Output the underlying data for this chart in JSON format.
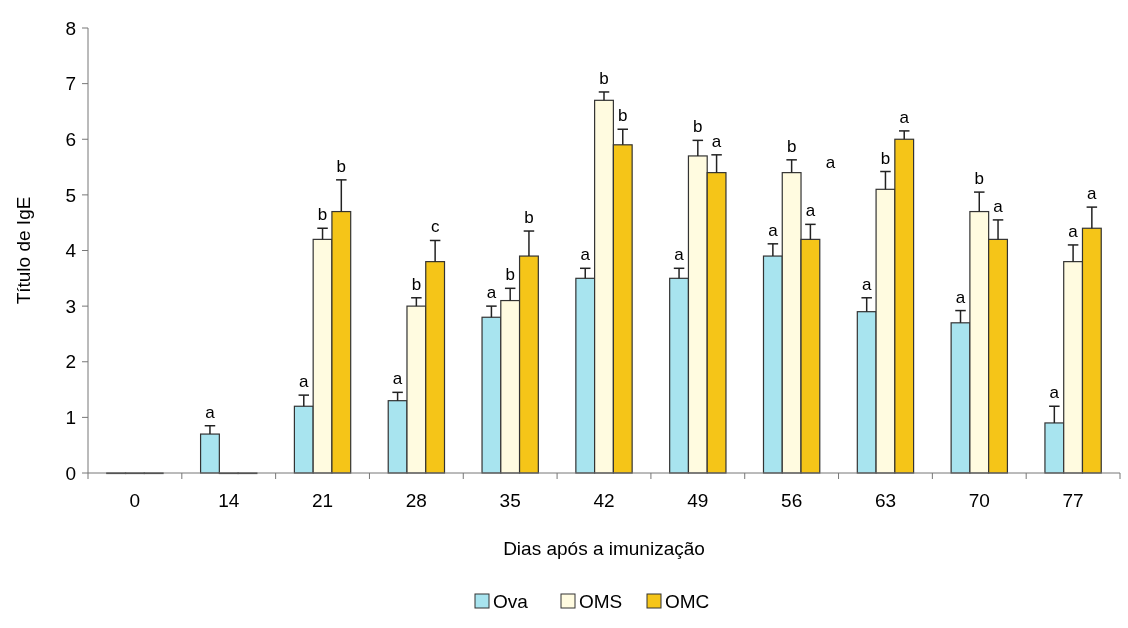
{
  "chart_data": {
    "type": "bar",
    "xlabel": "Dias após a imunização",
    "ylabel": "Título de IgE",
    "categories": [
      "0",
      "14",
      "21",
      "28",
      "35",
      "42",
      "49",
      "56",
      "63",
      "70",
      "77"
    ],
    "series": [
      {
        "name": "Ova",
        "color": "#a8e4ef",
        "values": [
          0,
          0.7,
          1.2,
          1.3,
          2.8,
          3.5,
          3.5,
          3.9,
          2.9,
          2.7,
          0.9
        ],
        "errors": [
          null,
          [
            0.7,
            0.85
          ],
          [
            1.2,
            1.4
          ],
          [
            1.3,
            1.45
          ],
          [
            2.8,
            3.0
          ],
          [
            3.5,
            3.68
          ],
          [
            3.5,
            3.68
          ],
          [
            3.9,
            4.12
          ],
          [
            2.9,
            3.15
          ],
          [
            2.7,
            2.92
          ],
          [
            0.9,
            1.2
          ]
        ],
        "value_labels": [
          null,
          "a",
          "a",
          "a",
          "a",
          "a",
          "a",
          "a",
          "a",
          "a",
          "a"
        ]
      },
      {
        "name": "OMS",
        "color": "#fffbe0",
        "values": [
          0,
          0,
          4.2,
          3.0,
          3.1,
          6.7,
          5.7,
          5.4,
          5.1,
          4.7,
          3.8
        ],
        "errors": [
          null,
          null,
          [
            4.2,
            4.4
          ],
          [
            3.0,
            3.15
          ],
          [
            3.1,
            3.32
          ],
          [
            6.7,
            6.85
          ],
          [
            5.7,
            5.98
          ],
          [
            5.4,
            5.63
          ],
          [
            5.1,
            5.42
          ],
          [
            4.7,
            5.05
          ],
          [
            3.8,
            4.1
          ]
        ],
        "value_labels": [
          null,
          null,
          "b",
          "b",
          "b",
          "b",
          "b",
          "b",
          "b",
          "b",
          "a"
        ]
      },
      {
        "name": "OMC",
        "color": "#f5c518",
        "values": [
          0,
          0,
          4.7,
          3.8,
          3.9,
          5.9,
          5.4,
          4.2,
          6.0,
          4.2,
          4.4
        ],
        "errors": [
          null,
          null,
          [
            4.7,
            5.27
          ],
          [
            3.8,
            4.18
          ],
          [
            3.9,
            4.35
          ],
          [
            5.9,
            6.18
          ],
          [
            5.4,
            5.72
          ],
          [
            4.2,
            4.47
          ],
          [
            6.0,
            6.15
          ],
          [
            4.2,
            4.55
          ],
          [
            4.4,
            4.78
          ]
        ],
        "value_labels": [
          null,
          null,
          "b",
          "c",
          "b",
          "b",
          "a",
          "a",
          "a",
          "a",
          "a"
        ]
      }
    ],
    "annotations": [
      "a"
    ],
    "ylim": [
      0,
      8
    ],
    "yticks": [
      0,
      1,
      2,
      3,
      4,
      5,
      6,
      7,
      8
    ],
    "grid": false,
    "legend": "bottom"
  }
}
